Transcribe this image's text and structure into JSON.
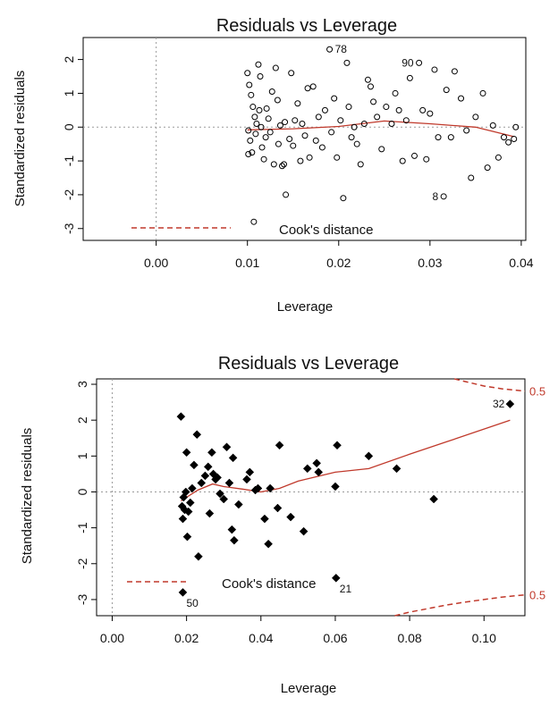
{
  "chart_data": [
    {
      "type": "scatter",
      "title": "Residuals vs Leverage",
      "xlabel": "Leverage",
      "ylabel": "Standardized residuals",
      "xlim": [
        -0.008,
        0.0405
      ],
      "ylim": [
        -3.35,
        2.65
      ],
      "xticks": [
        0.0,
        0.01,
        0.02,
        0.03,
        0.04
      ],
      "xtick_labels": [
        "0.00",
        "0.01",
        "0.02",
        "0.03",
        "0.04"
      ],
      "yticks": [
        -3,
        -2,
        -1,
        0,
        1,
        2
      ],
      "ytick_labels": [
        "-3",
        "-2",
        "-1",
        "0",
        "1",
        "2"
      ],
      "marker": "open-circle",
      "points": [
        [
          0.01,
          1.6
        ],
        [
          0.0102,
          1.25
        ],
        [
          0.0104,
          0.95
        ],
        [
          0.0106,
          0.6
        ],
        [
          0.0108,
          0.3
        ],
        [
          0.0101,
          -0.1
        ],
        [
          0.0103,
          -0.4
        ],
        [
          0.0105,
          -0.75
        ],
        [
          0.0109,
          -0.2
        ],
        [
          0.011,
          0.1
        ],
        [
          0.0112,
          1.85
        ],
        [
          0.0114,
          1.5
        ],
        [
          0.0113,
          0.5
        ],
        [
          0.0115,
          0.0
        ],
        [
          0.0116,
          -0.6
        ],
        [
          0.0118,
          -0.95
        ],
        [
          0.012,
          -0.3
        ],
        [
          0.0121,
          0.55
        ],
        [
          0.0123,
          0.25
        ],
        [
          0.0125,
          -0.15
        ],
        [
          0.0127,
          1.05
        ],
        [
          0.0129,
          -1.1
        ],
        [
          0.0131,
          1.75
        ],
        [
          0.0133,
          0.8
        ],
        [
          0.0134,
          -0.5
        ],
        [
          0.0136,
          0.05
        ],
        [
          0.0138,
          -1.15
        ],
        [
          0.014,
          -1.1
        ],
        [
          0.0141,
          0.15
        ],
        [
          0.0142,
          -2.0
        ],
        [
          0.0146,
          -0.35
        ],
        [
          0.0148,
          1.6
        ],
        [
          0.015,
          -0.55
        ],
        [
          0.0152,
          0.2
        ],
        [
          0.0155,
          0.7
        ],
        [
          0.0158,
          -1.0
        ],
        [
          0.016,
          0.1
        ],
        [
          0.0163,
          -0.25
        ],
        [
          0.0166,
          1.15
        ],
        [
          0.0168,
          -0.9
        ],
        [
          0.0172,
          1.2
        ],
        [
          0.0175,
          -0.4
        ],
        [
          0.0178,
          0.3
        ],
        [
          0.0182,
          -0.6
        ],
        [
          0.0185,
          0.5
        ],
        [
          0.019,
          2.3
        ],
        [
          0.0192,
          -0.15
        ],
        [
          0.0195,
          0.85
        ],
        [
          0.0198,
          -0.9
        ],
        [
          0.0202,
          0.2
        ],
        [
          0.0205,
          -2.1
        ],
        [
          0.0209,
          1.9
        ],
        [
          0.0211,
          0.6
        ],
        [
          0.0214,
          -0.3
        ],
        [
          0.0217,
          0.0
        ],
        [
          0.022,
          -0.5
        ],
        [
          0.0224,
          -1.1
        ],
        [
          0.0228,
          0.1
        ],
        [
          0.0232,
          1.4
        ],
        [
          0.0235,
          1.2
        ],
        [
          0.0238,
          0.75
        ],
        [
          0.0242,
          0.3
        ],
        [
          0.0247,
          -0.65
        ],
        [
          0.0252,
          0.6
        ],
        [
          0.0258,
          0.1
        ],
        [
          0.0262,
          1.0
        ],
        [
          0.0266,
          0.5
        ],
        [
          0.027,
          -1.0
        ],
        [
          0.0274,
          0.2
        ],
        [
          0.0278,
          1.45
        ],
        [
          0.0283,
          -0.85
        ],
        [
          0.0288,
          1.9
        ],
        [
          0.0292,
          0.5
        ],
        [
          0.0296,
          -0.95
        ],
        [
          0.03,
          0.4
        ],
        [
          0.0305,
          1.7
        ],
        [
          0.0309,
          -0.3
        ],
        [
          0.0315,
          -2.05
        ],
        [
          0.0318,
          1.1
        ],
        [
          0.0323,
          -0.3
        ],
        [
          0.0327,
          1.65
        ],
        [
          0.0334,
          0.85
        ],
        [
          0.034,
          -0.1
        ],
        [
          0.0345,
          -1.5
        ],
        [
          0.035,
          0.3
        ],
        [
          0.0358,
          1.0
        ],
        [
          0.0363,
          -1.2
        ],
        [
          0.0369,
          0.05
        ],
        [
          0.0375,
          -0.9
        ],
        [
          0.0381,
          -0.3
        ],
        [
          0.0386,
          -0.45
        ],
        [
          0.0392,
          -0.35
        ],
        [
          0.0394,
          0.0
        ],
        [
          0.0101,
          -0.8
        ],
        [
          0.0107,
          -2.8
        ]
      ],
      "point_labels": [
        {
          "text": "78",
          "x": 0.019,
          "y": 2.3,
          "side": "right"
        },
        {
          "text": "90",
          "x": 0.0288,
          "y": 1.9,
          "side": "left"
        },
        {
          "text": "8",
          "x": 0.0315,
          "y": -2.05,
          "side": "left"
        }
      ],
      "smooth_line": [
        [
          0.01,
          -0.08
        ],
        [
          0.015,
          -0.05
        ],
        [
          0.02,
          0.02
        ],
        [
          0.025,
          0.18
        ],
        [
          0.03,
          0.1
        ],
        [
          0.035,
          0.0
        ],
        [
          0.0392,
          -0.28
        ]
      ],
      "cooks_contours": [],
      "legend": {
        "label": "Cook's distance",
        "position": "bottom-left"
      },
      "hline": 0,
      "vline": 0
    },
    {
      "type": "scatter",
      "title": "Residuals vs Leverage",
      "xlabel": "Leverage",
      "ylabel": "Standardized residuals",
      "xlim": [
        -0.0042,
        0.111
      ],
      "ylim": [
        -3.45,
        3.15
      ],
      "xticks": [
        0.0,
        0.02,
        0.04,
        0.06,
        0.08,
        0.1
      ],
      "xtick_labels": [
        "0.00",
        "0.02",
        "0.04",
        "0.06",
        "0.08",
        "0.10"
      ],
      "yticks": [
        -3,
        -2,
        -1,
        0,
        1,
        2,
        3
      ],
      "ytick_labels": [
        "-3",
        "-2",
        "-1",
        "0",
        "1",
        "2",
        "3"
      ],
      "marker": "filled-diamond",
      "points": [
        [
          0.0185,
          2.1
        ],
        [
          0.0188,
          -0.4
        ],
        [
          0.019,
          -0.75
        ],
        [
          0.0192,
          -0.15
        ],
        [
          0.0195,
          -0.5
        ],
        [
          0.0198,
          0.0
        ],
        [
          0.02,
          1.1
        ],
        [
          0.0202,
          -1.25
        ],
        [
          0.0205,
          -0.55
        ],
        [
          0.021,
          -0.3
        ],
        [
          0.0215,
          0.1
        ],
        [
          0.022,
          0.75
        ],
        [
          0.0228,
          1.6
        ],
        [
          0.0232,
          -1.8
        ],
        [
          0.024,
          0.25
        ],
        [
          0.025,
          0.45
        ],
        [
          0.0258,
          0.7
        ],
        [
          0.0262,
          -0.6
        ],
        [
          0.0268,
          1.1
        ],
        [
          0.0272,
          0.5
        ],
        [
          0.0278,
          0.35
        ],
        [
          0.0283,
          0.4
        ],
        [
          0.029,
          -0.05
        ],
        [
          0.03,
          -0.2
        ],
        [
          0.0308,
          1.25
        ],
        [
          0.0315,
          0.25
        ],
        [
          0.0322,
          -1.05
        ],
        [
          0.0325,
          0.95
        ],
        [
          0.0328,
          -1.35
        ],
        [
          0.034,
          -0.35
        ],
        [
          0.0362,
          0.35
        ],
        [
          0.037,
          0.55
        ],
        [
          0.0385,
          0.05
        ],
        [
          0.0392,
          0.1
        ],
        [
          0.041,
          -0.75
        ],
        [
          0.042,
          -1.45
        ],
        [
          0.0425,
          0.1
        ],
        [
          0.045,
          1.3
        ],
        [
          0.0445,
          -0.45
        ],
        [
          0.048,
          -0.7
        ],
        [
          0.0515,
          -1.1
        ],
        [
          0.0525,
          0.65
        ],
        [
          0.055,
          0.8
        ],
        [
          0.0555,
          0.55
        ],
        [
          0.0605,
          1.3
        ],
        [
          0.06,
          0.15
        ],
        [
          0.0602,
          -2.4
        ],
        [
          0.069,
          1.0
        ],
        [
          0.0765,
          0.65
        ],
        [
          0.0865,
          -0.2
        ],
        [
          0.107,
          2.45
        ],
        [
          0.019,
          -2.8
        ]
      ],
      "point_labels": [
        {
          "text": "32",
          "x": 0.107,
          "y": 2.45,
          "side": "left"
        },
        {
          "text": "21",
          "x": 0.0602,
          "y": -2.4,
          "side": "below-right"
        },
        {
          "text": "50",
          "x": 0.019,
          "y": -2.8,
          "side": "below-right"
        }
      ],
      "smooth_line": [
        [
          0.0185,
          -0.25
        ],
        [
          0.023,
          0.05
        ],
        [
          0.027,
          0.22
        ],
        [
          0.03,
          0.15
        ],
        [
          0.035,
          0.08
        ],
        [
          0.04,
          0.0
        ],
        [
          0.045,
          0.1
        ],
        [
          0.05,
          0.3
        ],
        [
          0.06,
          0.55
        ],
        [
          0.069,
          0.65
        ],
        [
          0.08,
          1.05
        ],
        [
          0.09,
          1.4
        ],
        [
          0.107,
          2.0
        ]
      ],
      "cooks_contours": [
        {
          "label": "0.5",
          "points": [
            [
              0.092,
              3.15
            ],
            [
              0.096,
              3.05
            ],
            [
              0.1,
              2.95
            ],
            [
              0.105,
              2.87
            ],
            [
              0.111,
              2.81
            ]
          ]
        },
        {
          "label": "0.5",
          "points": [
            [
              0.076,
              -3.45
            ],
            [
              0.08,
              -3.35
            ],
            [
              0.085,
              -3.25
            ],
            [
              0.09,
              -3.15
            ],
            [
              0.095,
              -3.07
            ],
            [
              0.1,
              -3.0
            ],
            [
              0.105,
              -2.93
            ],
            [
              0.111,
              -2.87
            ]
          ]
        }
      ],
      "legend": {
        "label": "Cook's distance",
        "position": "bottom-left"
      },
      "hline": 0,
      "vline": 0,
      "colors": {
        "smooth": "#c0392b",
        "cook": "#c0392b"
      }
    }
  ]
}
